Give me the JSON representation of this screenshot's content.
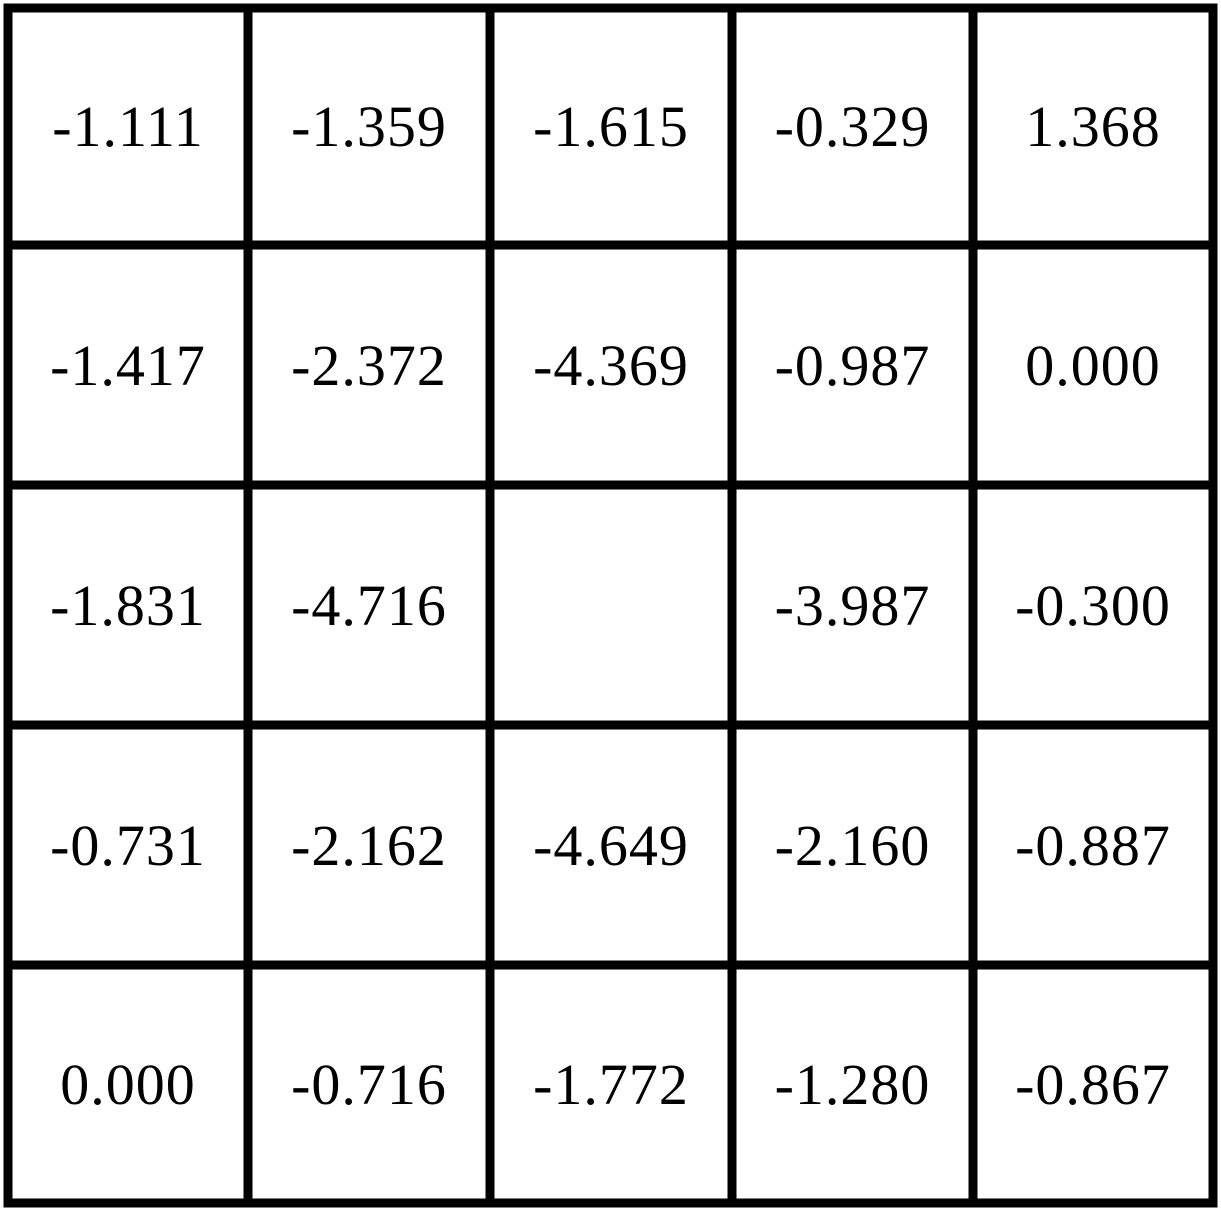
{
  "grid": {
    "rows": [
      [
        "-1.111",
        "-1.359",
        "-1.615",
        "-0.329",
        "1.368"
      ],
      [
        "-1.417",
        "-2.372",
        "-4.369",
        "-0.987",
        "0.000"
      ],
      [
        "-1.831",
        "-4.716",
        "",
        "-3.987",
        "-0.300"
      ],
      [
        "-0.731",
        "-2.162",
        "-4.649",
        "-2.160",
        "-0.887"
      ],
      [
        "0.000",
        "-0.716",
        "-1.772",
        "-1.280",
        "-0.867"
      ]
    ]
  }
}
